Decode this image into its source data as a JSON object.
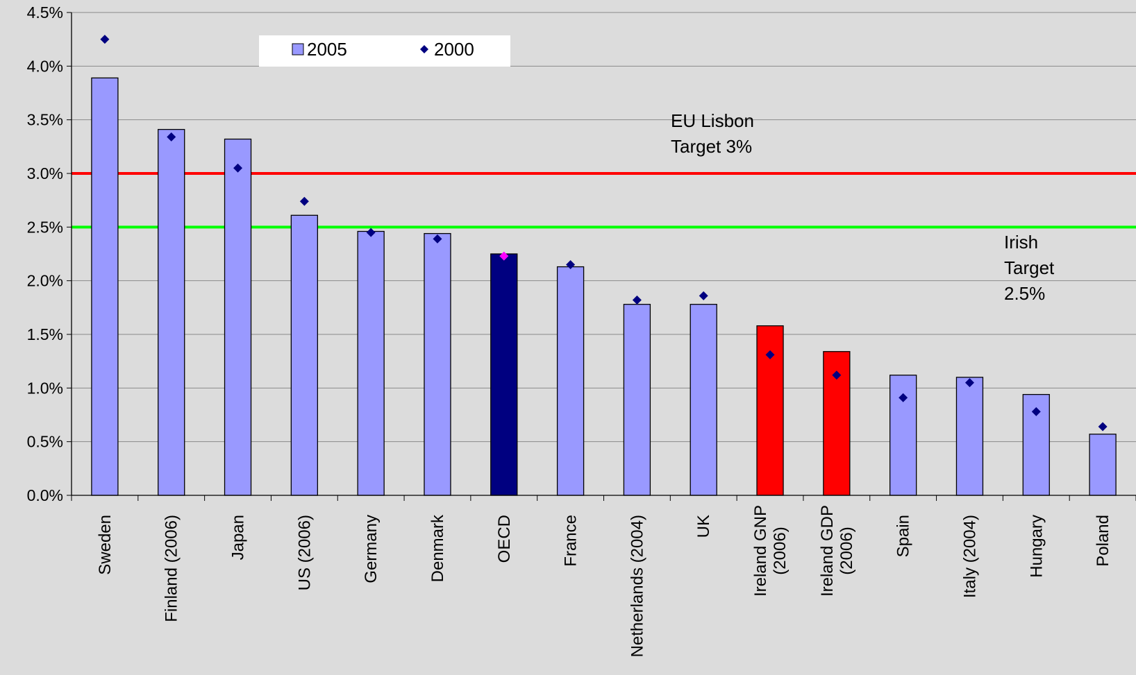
{
  "chart_data": {
    "type": "bar",
    "categories": [
      "Sweden",
      "Finland (2006)",
      "Japan",
      "US (2006)",
      "Germany",
      "Denmark",
      "OECD",
      "France",
      "Netherlands (2004)",
      "UK",
      "Ireland GNP\n(2006)",
      "Ireland GDP\n(2006)",
      "Spain",
      "Italy (2004)",
      "Hungary",
      "Poland"
    ],
    "series": [
      {
        "name": "2005",
        "kind": "bar",
        "values": [
          3.89,
          3.41,
          3.32,
          2.61,
          2.46,
          2.44,
          2.25,
          2.13,
          1.78,
          1.78,
          1.58,
          1.34,
          1.12,
          1.1,
          0.94,
          0.57
        ],
        "color": "#9999ff",
        "bar_colors": [
          "#9999ff",
          "#9999ff",
          "#9999ff",
          "#9999ff",
          "#9999ff",
          "#9999ff",
          "#000080",
          "#9999ff",
          "#9999ff",
          "#9999ff",
          "#ff0000",
          "#ff0000",
          "#9999ff",
          "#9999ff",
          "#9999ff",
          "#9999ff"
        ]
      },
      {
        "name": "2000",
        "kind": "marker",
        "values": [
          4.25,
          3.34,
          3.05,
          2.74,
          2.45,
          2.39,
          2.23,
          2.15,
          1.82,
          1.86,
          1.31,
          1.12,
          0.91,
          1.05,
          0.78,
          0.64
        ],
        "color": "#000080",
        "marker_colors": [
          "#000080",
          "#000080",
          "#000080",
          "#000080",
          "#000080",
          "#000080",
          "#ff00ff",
          "#000080",
          "#000080",
          "#000080",
          "#000080",
          "#000080",
          "#000080",
          "#000080",
          "#000080",
          "#000080"
        ]
      }
    ],
    "reference_lines": [
      {
        "value": 3.0,
        "color": "#ff0000",
        "label": [
          "EU Lisbon",
          "Target 3%"
        ]
      },
      {
        "value": 2.5,
        "color": "#00ff00",
        "label": [
          "Irish",
          "Target",
          "2.5%"
        ]
      }
    ],
    "yticks": [
      "0.0%",
      "0.5%",
      "1.0%",
      "1.5%",
      "2.0%",
      "2.5%",
      "3.0%",
      "3.5%",
      "4.0%",
      "4.5%"
    ],
    "ylim": [
      0,
      4.5
    ],
    "gridlines": true,
    "legend_position": "top-center",
    "title": "",
    "xlabel": "",
    "ylabel": ""
  }
}
